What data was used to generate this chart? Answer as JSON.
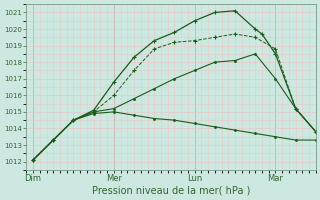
{
  "background_color": "#cce8e0",
  "grid_color": "#e8c8c8",
  "line_color": "#1a5c1a",
  "xlabel": "Pression niveau de la mer( hPa )",
  "ylim": [
    1011.5,
    1021.5
  ],
  "yticks": [
    1012,
    1013,
    1014,
    1015,
    1016,
    1017,
    1018,
    1019,
    1020,
    1021
  ],
  "xtick_labels": [
    "Dim",
    "Mer",
    "Lun",
    "Mar"
  ],
  "xtick_positions": [
    0,
    12,
    24,
    36
  ],
  "xlim": [
    -1,
    42
  ],
  "num_points": 42,
  "series": [
    {
      "x": [
        0,
        3,
        6,
        9,
        12,
        15,
        18,
        21,
        24,
        27,
        30,
        33,
        36,
        39,
        42
      ],
      "y": [
        1012.1,
        1013.3,
        1014.5,
        1014.9,
        1015.0,
        1014.8,
        1014.6,
        1014.5,
        1014.3,
        1014.1,
        1013.9,
        1013.7,
        1013.5,
        1013.3,
        1013.3
      ],
      "marker": ".",
      "linestyle": "-",
      "linewidth": 0.8,
      "markersize": 2.5
    },
    {
      "x": [
        0,
        3,
        6,
        9,
        12,
        15,
        18,
        21,
        24,
        27,
        30,
        33,
        36,
        39,
        42
      ],
      "y": [
        1012.1,
        1013.3,
        1014.5,
        1015.0,
        1015.2,
        1015.8,
        1016.4,
        1017.0,
        1017.5,
        1018.0,
        1018.1,
        1018.5,
        1017.0,
        1015.2,
        1013.8
      ],
      "marker": ".",
      "linestyle": "-",
      "linewidth": 0.8,
      "markersize": 2.5
    },
    {
      "x": [
        0,
        3,
        6,
        9,
        12,
        15,
        18,
        21,
        24,
        27,
        30,
        33,
        36,
        39,
        42
      ],
      "y": [
        1012.1,
        1013.3,
        1014.5,
        1015.0,
        1016.0,
        1017.5,
        1018.8,
        1019.2,
        1019.3,
        1019.5,
        1019.7,
        1019.5,
        1018.8,
        1015.2,
        1013.8
      ],
      "marker": "+",
      "linestyle": "--",
      "linewidth": 0.7,
      "markersize": 3.5
    },
    {
      "x": [
        0,
        3,
        6,
        9,
        12,
        15,
        18,
        21,
        24,
        27,
        30,
        33,
        34,
        36,
        39,
        42
      ],
      "y": [
        1012.1,
        1013.3,
        1014.5,
        1015.1,
        1016.8,
        1018.3,
        1019.3,
        1019.8,
        1020.5,
        1021.0,
        1021.1,
        1020.0,
        1019.7,
        1018.5,
        1015.2,
        1013.8
      ],
      "marker": "+",
      "linestyle": "-",
      "linewidth": 0.9,
      "markersize": 3.5
    }
  ],
  "vline_positions": [
    0,
    12,
    24,
    36
  ],
  "vline_color": "#7a9a8a",
  "spine_color": "#7a9a8a",
  "tick_color": "#336633",
  "xlabel_fontsize": 7,
  "ytick_fontsize": 5,
  "xtick_fontsize": 6
}
